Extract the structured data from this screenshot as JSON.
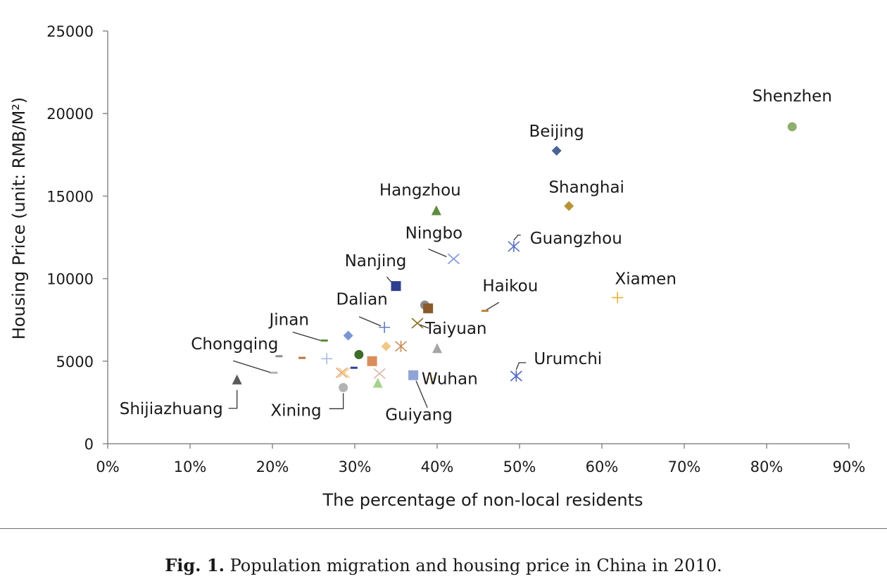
{
  "caption": {
    "fig_label": "Fig. 1.",
    "text": "Population migration and housing price in China in 2010."
  },
  "chart_data": {
    "type": "scatter",
    "title": "",
    "xlabel": "The percentage of non-local residents",
    "ylabel": "Housing Price (unit: RMB/M²)",
    "xlim": [
      0,
      90
    ],
    "ylim": [
      0,
      25000
    ],
    "x_ticks": [
      0,
      10,
      20,
      30,
      40,
      50,
      60,
      70,
      80,
      90
    ],
    "x_tick_labels": [
      "0%",
      "10%",
      "20%",
      "30%",
      "40%",
      "50%",
      "60%",
      "70%",
      "80%",
      "90%"
    ],
    "y_ticks": [
      0,
      5000,
      10000,
      15000,
      20000,
      25000
    ],
    "y_tick_labels": [
      "0",
      "5000",
      "10000",
      "15000",
      "20000",
      "25000"
    ],
    "grid": false,
    "legend": "none",
    "points": [
      {
        "label": "Shenzhen",
        "x": 83.1,
        "y": 19200,
        "marker": "circle",
        "color": "#8fb06c"
      },
      {
        "label": "Beijing",
        "x": 54.5,
        "y": 17750,
        "marker": "diamond",
        "color": "#4a6394"
      },
      {
        "label": "Shanghai",
        "x": 56.0,
        "y": 14400,
        "marker": "diamond",
        "color": "#b69435"
      },
      {
        "label": "Hangzhou",
        "x": 39.9,
        "y": 14100,
        "marker": "triangle",
        "color": "#5e8c3f"
      },
      {
        "label": "Guangzhou",
        "x": 49.3,
        "y": 11950,
        "marker": "star",
        "color": "#5b73c2"
      },
      {
        "label": "Ningbo",
        "x": 42.0,
        "y": 11200,
        "marker": "x",
        "color": "#7b96d3"
      },
      {
        "label": "Nanjing",
        "x": 35.0,
        "y": 9550,
        "marker": "square",
        "color": "#2f3f8f"
      },
      {
        "label": "Xiamen",
        "x": 61.9,
        "y": 8850,
        "marker": "plus",
        "color": "#e0b23a"
      },
      {
        "label": "Haikou",
        "x": 45.8,
        "y": 8050,
        "marker": "dash",
        "color": "#c0803d"
      },
      {
        "label": "Dalian",
        "x": 33.6,
        "y": 7050,
        "marker": "plus",
        "color": "#5f7dc6"
      },
      {
        "label": "Taiyuan",
        "x": 37.6,
        "y": 7300,
        "marker": "x",
        "color": "#8c6d1c"
      },
      {
        "label": "Jinan",
        "x": 26.3,
        "y": 6250,
        "marker": "dash",
        "color": "#5e8c3f"
      },
      {
        "label": "Chongqing",
        "x": 20.2,
        "y": 4300,
        "marker": "dash",
        "color": "#b3b3b3"
      },
      {
        "label": "Shijiazhuang",
        "x": 15.7,
        "y": 3850,
        "marker": "triangle",
        "color": "#5a5a5a"
      },
      {
        "label": "Xining",
        "x": 28.6,
        "y": 3400,
        "marker": "circle",
        "color": "#b3b3b3"
      },
      {
        "label": "Guiyang",
        "x": 37.1,
        "y": 4150,
        "marker": "square",
        "color": "#8fa3d6"
      },
      {
        "label": "Urumchi",
        "x": 49.6,
        "y": 4100,
        "marker": "star",
        "color": "#4a66bd"
      },
      {
        "label": "Wuhan",
        "x": 39.3,
        "y": 3950,
        "marker": "plus",
        "color": "#f0d9a2"
      },
      {
        "label": "",
        "x": 38.5,
        "y": 8400,
        "marker": "circle",
        "color": "#8c8c8c"
      },
      {
        "label": "",
        "x": 38.9,
        "y": 8200,
        "marker": "square",
        "color": "#8b5a2b"
      },
      {
        "label": "",
        "x": 29.2,
        "y": 6550,
        "marker": "diamond",
        "color": "#7b96d3"
      },
      {
        "label": "",
        "x": 30.5,
        "y": 5400,
        "marker": "circle",
        "color": "#3e6b2a"
      },
      {
        "label": "",
        "x": 33.8,
        "y": 5900,
        "marker": "diamond",
        "color": "#f0c987"
      },
      {
        "label": "",
        "x": 35.6,
        "y": 5900,
        "marker": "star",
        "color": "#c98955"
      },
      {
        "label": "",
        "x": 40.0,
        "y": 5750,
        "marker": "triangle",
        "color": "#a6a6a6"
      },
      {
        "label": "",
        "x": 32.1,
        "y": 5000,
        "marker": "square",
        "color": "#d98d5c"
      },
      {
        "label": "",
        "x": 20.8,
        "y": 5300,
        "marker": "dash",
        "color": "#8c8c8c"
      },
      {
        "label": "",
        "x": 23.6,
        "y": 5200,
        "marker": "dash",
        "color": "#c0703a"
      },
      {
        "label": "",
        "x": 26.6,
        "y": 5150,
        "marker": "plus",
        "color": "#a8bde6"
      },
      {
        "label": "",
        "x": 28.4,
        "y": 4300,
        "marker": "x",
        "color": "#e6a06a"
      },
      {
        "label": "",
        "x": 28.7,
        "y": 4300,
        "marker": "x",
        "color": "#f0c987"
      },
      {
        "label": "",
        "x": 29.9,
        "y": 4600,
        "marker": "dash",
        "color": "#2f3f8f"
      },
      {
        "label": "",
        "x": 33.0,
        "y": 4250,
        "marker": "x",
        "color": "#d9b8a6"
      },
      {
        "label": "",
        "x": 32.8,
        "y": 3650,
        "marker": "triangle",
        "color": "#a9d18e"
      }
    ]
  }
}
